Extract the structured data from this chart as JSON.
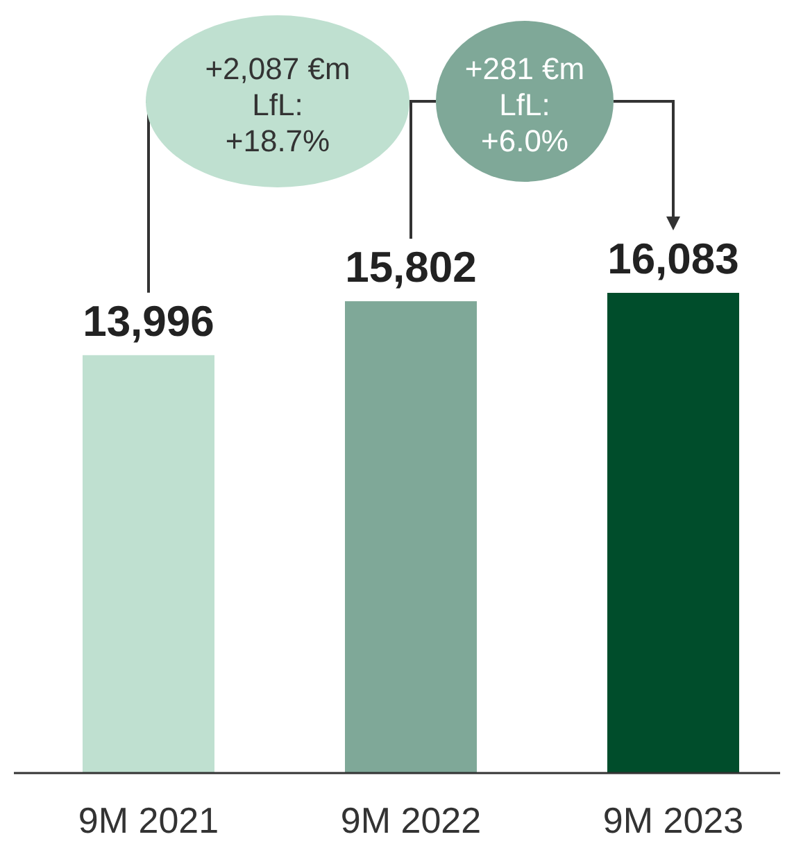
{
  "chart_data": {
    "type": "bar",
    "categories": [
      "9M 2021",
      "9M 2022",
      "9M 2023"
    ],
    "values": [
      13996,
      15802,
      16083
    ],
    "colors": [
      "#bfe0d0",
      "#7fa898",
      "#004d2b"
    ],
    "value_labels": [
      "13,996",
      "15,802",
      "16,083"
    ],
    "annotations": [
      "+2,087 €m\nLfL:\n+18.7%",
      "+281 €m\nLfL:\n+6.0%"
    ]
  }
}
